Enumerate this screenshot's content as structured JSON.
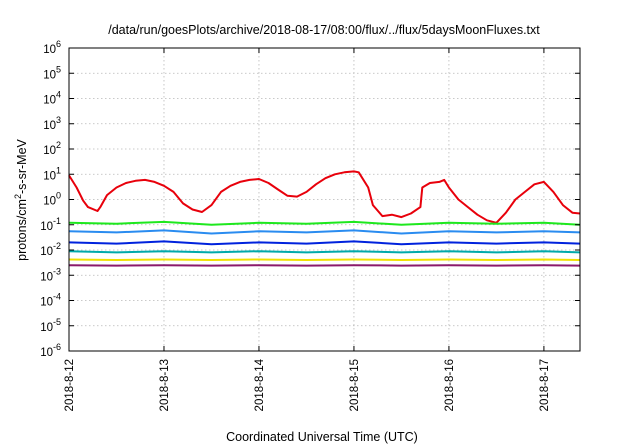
{
  "chart_data": {
    "type": "line",
    "title": "/data/run/goesPlots/archive/2018-08-17/08:00/flux/../flux/5daysMoonFluxes.txt",
    "xlabel": "Coordinated Universal Time (UTC)",
    "ylabel": {
      "pre": "protons/cm",
      "sup": "2",
      "post": "-s-sr-MeV"
    },
    "yscale": "log",
    "ylim": [
      1e-06,
      1000000.0
    ],
    "xlim": [
      0,
      5.38
    ],
    "grid": true,
    "legend": "none",
    "xticks": [
      {
        "x": 0,
        "label": "2018-8-12"
      },
      {
        "x": 1,
        "label": "2018-8-13"
      },
      {
        "x": 2,
        "label": "2018-8-14"
      },
      {
        "x": 3,
        "label": "2018-8-15"
      },
      {
        "x": 4,
        "label": "2018-8-16"
      },
      {
        "x": 5,
        "label": "2018-8-17"
      }
    ],
    "yticks": [
      {
        "exp": -6,
        "label": "-6"
      },
      {
        "exp": -5,
        "label": "-5"
      },
      {
        "exp": -4,
        "label": "-4"
      },
      {
        "exp": -3,
        "label": "-3"
      },
      {
        "exp": -2,
        "label": "-2"
      },
      {
        "exp": -1,
        "label": "-1"
      },
      {
        "exp": 0,
        "label": "0"
      },
      {
        "exp": 1,
        "label": "1"
      },
      {
        "exp": 2,
        "label": "2"
      },
      {
        "exp": 3,
        "label": "3"
      },
      {
        "exp": 4,
        "label": "4"
      },
      {
        "exp": 5,
        "label": "5"
      },
      {
        "exp": 6,
        "label": "6"
      }
    ],
    "tick_base": "10",
    "series": [
      {
        "color": "#e8000b",
        "x": [
          0,
          0.08,
          0.15,
          0.2,
          0.3,
          0.33,
          0.4,
          0.5,
          0.6,
          0.7,
          0.8,
          0.9,
          1.0,
          1.1,
          1.2,
          1.3,
          1.4,
          1.5,
          1.6,
          1.7,
          1.8,
          1.9,
          2.0,
          2.1,
          2.2,
          2.3,
          2.4,
          2.5,
          2.6,
          2.7,
          2.8,
          2.9,
          3.0,
          3.05,
          3.15,
          3.2,
          3.3,
          3.4,
          3.5,
          3.6,
          3.7,
          3.72,
          3.8,
          3.9,
          3.95,
          4.0,
          4.1,
          4.2,
          4.3,
          4.4,
          4.5,
          4.6,
          4.7,
          4.8,
          4.9,
          5.0,
          5.1,
          5.2,
          5.3,
          5.38
        ],
        "y": [
          9,
          3,
          0.9,
          0.5,
          0.35,
          0.5,
          1.5,
          3,
          4.5,
          5.5,
          6,
          5,
          3.5,
          2,
          0.7,
          0.4,
          0.32,
          0.6,
          2,
          3.5,
          5,
          6,
          6.5,
          4.5,
          2.5,
          1.4,
          1.3,
          2,
          4,
          7,
          10,
          12,
          13,
          12,
          3,
          0.6,
          0.22,
          0.25,
          0.2,
          0.28,
          0.5,
          3,
          4.5,
          5,
          6,
          3,
          1,
          0.5,
          0.25,
          0.15,
          0.12,
          0.3,
          1,
          2,
          4,
          5,
          2,
          0.6,
          0.3,
          0.28
        ]
      },
      {
        "color": "#1ee81e",
        "x": [
          0,
          0.5,
          1,
          1.5,
          2,
          2.5,
          3,
          3.5,
          4,
          4.5,
          5,
          5.38
        ],
        "y": [
          0.12,
          0.11,
          0.13,
          0.1,
          0.12,
          0.11,
          0.13,
          0.1,
          0.12,
          0.11,
          0.12,
          0.1
        ]
      },
      {
        "color": "#2a8cf0",
        "x": [
          0,
          0.5,
          1,
          1.5,
          2,
          2.5,
          3,
          3.5,
          4,
          4.5,
          5,
          5.38
        ],
        "y": [
          0.055,
          0.05,
          0.06,
          0.045,
          0.055,
          0.05,
          0.06,
          0.045,
          0.055,
          0.05,
          0.055,
          0.05
        ]
      },
      {
        "color": "#0022dd",
        "x": [
          0,
          0.5,
          1,
          1.5,
          2,
          2.5,
          3,
          3.5,
          4,
          4.5,
          5,
          5.38
        ],
        "y": [
          0.02,
          0.018,
          0.022,
          0.017,
          0.02,
          0.018,
          0.022,
          0.017,
          0.02,
          0.018,
          0.02,
          0.018
        ]
      },
      {
        "color": "#00aaaa",
        "x": [
          0,
          0.5,
          1,
          1.5,
          2,
          2.5,
          3,
          3.5,
          4,
          4.5,
          5,
          5.38
        ],
        "y": [
          0.009,
          0.008,
          0.009,
          0.008,
          0.009,
          0.008,
          0.009,
          0.008,
          0.009,
          0.008,
          0.009,
          0.008
        ]
      },
      {
        "color": "#f0e000",
        "x": [
          0,
          0.5,
          1,
          1.5,
          2,
          2.5,
          3,
          3.5,
          4,
          4.5,
          5,
          5.38
        ],
        "y": [
          0.0042,
          0.004,
          0.0042,
          0.004,
          0.0042,
          0.004,
          0.0042,
          0.004,
          0.0042,
          0.004,
          0.0042,
          0.004
        ]
      },
      {
        "color": "#8b1a6b",
        "x": [
          0,
          0.5,
          1,
          1.5,
          2,
          2.5,
          3,
          3.5,
          4,
          4.5,
          5,
          5.38
        ],
        "y": [
          0.0025,
          0.0024,
          0.0025,
          0.0024,
          0.0025,
          0.0024,
          0.0025,
          0.0024,
          0.0025,
          0.0024,
          0.0025,
          0.0024
        ]
      }
    ]
  }
}
